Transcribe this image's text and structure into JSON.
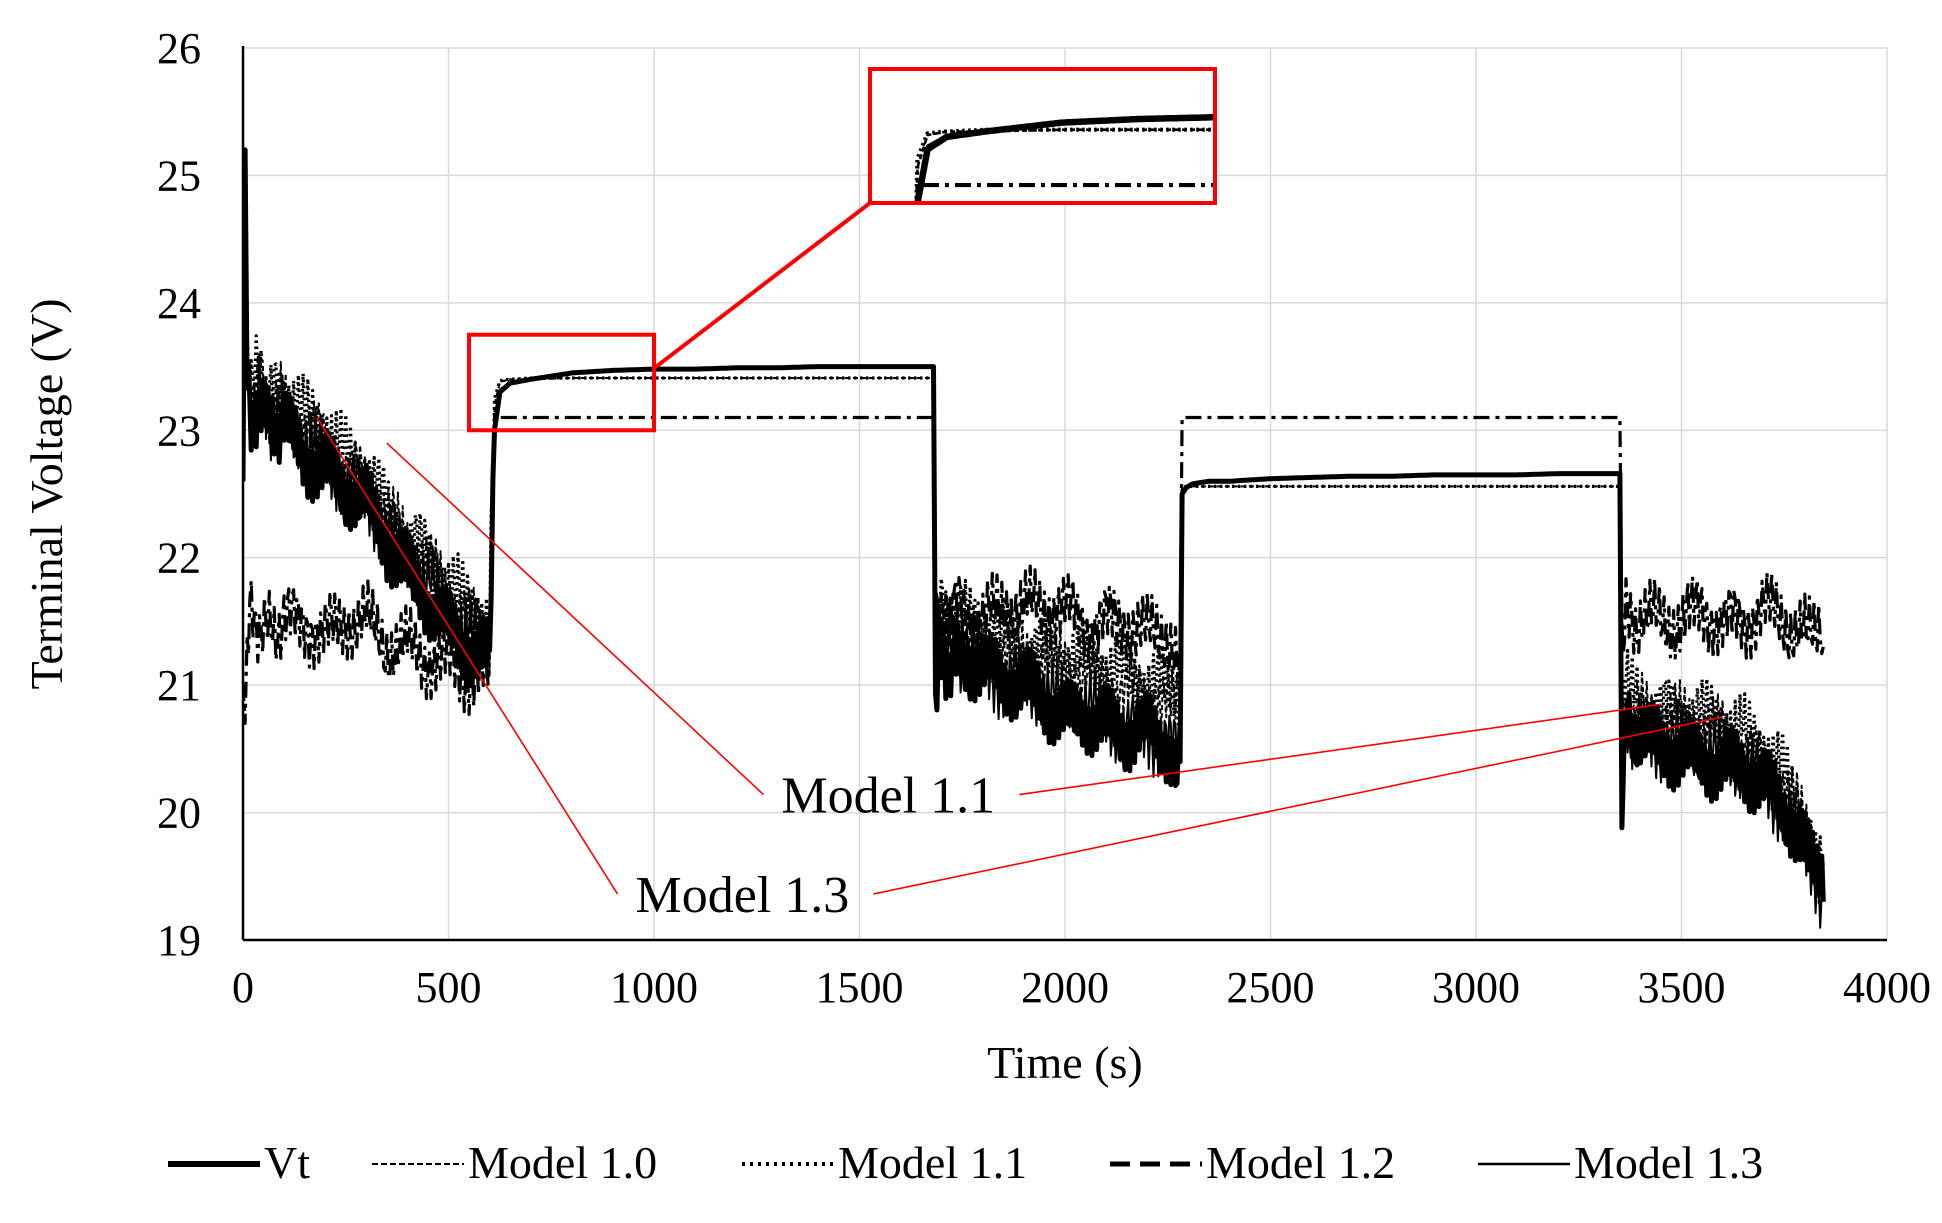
{
  "chart_data": {
    "type": "line",
    "title": "",
    "xlabel": "Time (s)",
    "ylabel": "Terminal Voltage (V)",
    "xlim": [
      0,
      4000
    ],
    "ylim": [
      19,
      26
    ],
    "x_ticks": [
      0,
      500,
      1000,
      1500,
      2000,
      2500,
      3000,
      3500,
      4000
    ],
    "x_tick_labels": [
      "0",
      "500",
      "1000",
      "1500",
      "2000",
      "2500",
      "3000",
      "3500",
      "4000"
    ],
    "y_ticks": [
      19,
      20,
      21,
      22,
      23,
      24,
      25,
      26
    ],
    "y_tick_labels": [
      "19",
      "20",
      "21",
      "22",
      "23",
      "24",
      "25",
      "26"
    ],
    "grid": true,
    "legend_position": "bottom",
    "series": [
      {
        "name": "Vt",
        "line_style": "thick-solid",
        "x": [
          0,
          5,
          10,
          20,
          40,
          60,
          100,
          150,
          200,
          250,
          300,
          350,
          400,
          450,
          500,
          550,
          600,
          612,
          625,
          650,
          700,
          800,
          900,
          1000,
          1100,
          1200,
          1300,
          1400,
          1500,
          1600,
          1680,
          1685,
          1695,
          1710,
          1750,
          1800,
          1850,
          1900,
          1950,
          2000,
          2050,
          2100,
          2150,
          2200,
          2250,
          2280,
          2285,
          2295,
          2310,
          2350,
          2400,
          2500,
          2600,
          2700,
          2800,
          2900,
          3000,
          3100,
          3200,
          3300,
          3350,
          3355,
          3365,
          3380,
          3400,
          3450,
          3500,
          3550,
          3600,
          3650,
          3700,
          3750,
          3800,
          3830,
          3845
        ],
        "y": [
          22.6,
          25.2,
          23.6,
          23.0,
          23.3,
          23.0,
          23.1,
          22.8,
          22.7,
          22.5,
          22.4,
          22.1,
          21.9,
          21.7,
          21.5,
          21.3,
          21.2,
          23.0,
          23.3,
          23.37,
          23.4,
          23.45,
          23.47,
          23.48,
          23.48,
          23.49,
          23.49,
          23.5,
          23.5,
          23.5,
          23.5,
          21.0,
          21.4,
          21.2,
          21.2,
          21.1,
          21.0,
          21.0,
          20.9,
          20.8,
          20.8,
          20.7,
          20.6,
          20.6,
          20.5,
          20.4,
          22.5,
          22.55,
          22.58,
          22.6,
          22.6,
          22.62,
          22.63,
          22.64,
          22.64,
          22.65,
          22.65,
          22.65,
          22.66,
          22.66,
          22.66,
          20.2,
          20.8,
          20.6,
          20.6,
          20.5,
          20.5,
          20.45,
          20.4,
          20.35,
          20.2,
          20.0,
          19.7,
          19.4,
          19.3
        ]
      },
      {
        "name": "Model 1.0",
        "line_style": "thin-dashed",
        "x": [
          0,
          5,
          10,
          20,
          40,
          60,
          100,
          150,
          200,
          250,
          300,
          350,
          400,
          450,
          500,
          550,
          600,
          612,
          625,
          650,
          700,
          800,
          900,
          1000,
          1100,
          1200,
          1300,
          1400,
          1500,
          1600,
          1680,
          1685,
          1695,
          1710,
          1750,
          1800,
          1850,
          1900,
          1950,
          2000,
          2050,
          2100,
          2150,
          2200,
          2250,
          2280,
          2285,
          2295,
          2310,
          2350,
          2400,
          2500,
          2600,
          2700,
          2800,
          2900,
          3000,
          3100,
          3200,
          3300,
          3350,
          3355,
          3365,
          3380,
          3400,
          3450,
          3500,
          3550,
          3600,
          3650,
          3700,
          3750,
          3800,
          3830,
          3845
        ],
        "y": [
          22.8,
          24.0,
          23.4,
          23.2,
          23.4,
          23.2,
          23.2,
          23.0,
          22.9,
          22.7,
          22.6,
          22.3,
          22.1,
          21.9,
          21.7,
          21.5,
          21.4,
          23.2,
          23.38,
          23.4,
          23.4,
          23.41,
          23.41,
          23.41,
          23.41,
          23.41,
          23.41,
          23.41,
          23.41,
          23.41,
          23.41,
          21.3,
          21.5,
          21.4,
          21.4,
          21.3,
          21.3,
          21.2,
          21.2,
          21.1,
          21.1,
          21.0,
          21.0,
          20.9,
          20.9,
          20.8,
          22.55,
          22.56,
          22.56,
          22.56,
          22.56,
          22.56,
          22.56,
          22.56,
          22.56,
          22.56,
          22.56,
          22.56,
          22.56,
          22.56,
          22.56,
          20.6,
          20.9,
          20.8,
          20.8,
          20.7,
          20.7,
          20.65,
          20.6,
          20.5,
          20.4,
          20.2,
          19.9,
          19.6,
          19.5
        ]
      },
      {
        "name": "Model 1.1",
        "line_style": "dotted",
        "x": [
          0,
          5,
          10,
          20,
          40,
          60,
          100,
          150,
          200,
          250,
          300,
          350,
          400,
          450,
          500,
          550,
          600,
          612,
          625,
          650,
          700,
          800,
          900,
          1000,
          1100,
          1200,
          1300,
          1400,
          1500,
          1600,
          1680,
          1685,
          1695,
          1710,
          1750,
          1800,
          1850,
          1900,
          1950,
          2000,
          2050,
          2100,
          2150,
          2200,
          2250,
          2280,
          2285,
          2295,
          2310,
          2350,
          2400,
          2500,
          2600,
          2700,
          2800,
          2900,
          3000,
          3100,
          3200,
          3300,
          3350,
          3355,
          3365,
          3380,
          3400,
          3450,
          3500,
          3550,
          3600,
          3650,
          3700,
          3750,
          3800,
          3830,
          3845
        ],
        "y": [
          22.9,
          24.1,
          23.5,
          23.3,
          23.5,
          23.3,
          23.3,
          23.1,
          23.0,
          22.8,
          22.7,
          22.4,
          22.2,
          22.0,
          21.8,
          21.6,
          21.5,
          23.25,
          23.39,
          23.4,
          23.41,
          23.41,
          23.41,
          23.41,
          23.41,
          23.41,
          23.41,
          23.41,
          23.41,
          23.41,
          23.41,
          21.4,
          21.6,
          21.5,
          21.5,
          21.4,
          21.4,
          21.3,
          21.3,
          21.2,
          21.2,
          21.1,
          21.1,
          21.0,
          21.0,
          20.9,
          22.55,
          22.56,
          22.56,
          22.56,
          22.56,
          22.56,
          22.56,
          22.56,
          22.56,
          22.56,
          22.56,
          22.56,
          22.56,
          22.56,
          22.56,
          20.7,
          21.0,
          20.9,
          20.9,
          20.8,
          20.8,
          20.75,
          20.7,
          20.6,
          20.5,
          20.3,
          20.0,
          19.7,
          19.6
        ]
      },
      {
        "name": "Model 1.2",
        "line_style": "dash-dot",
        "x": [
          0,
          5,
          10,
          20,
          40,
          60,
          100,
          150,
          200,
          250,
          300,
          350,
          400,
          450,
          500,
          550,
          600,
          612,
          625,
          650,
          700,
          800,
          900,
          1000,
          1100,
          1200,
          1300,
          1400,
          1500,
          1600,
          1680,
          1685,
          1695,
          1710,
          1750,
          1800,
          1850,
          1900,
          1950,
          2000,
          2050,
          2100,
          2150,
          2200,
          2250,
          2280,
          2285,
          2295,
          2310,
          2350,
          2400,
          2500,
          2600,
          2700,
          2800,
          2900,
          3000,
          3100,
          3200,
          3300,
          3350,
          3355,
          3365,
          3380,
          3400,
          3450,
          3500,
          3550,
          3600,
          3650,
          3700,
          3750,
          3800,
          3830,
          3845
        ],
        "y": [
          21.0,
          20.7,
          21.5,
          21.6,
          21.5,
          21.4,
          21.5,
          21.5,
          21.4,
          21.5,
          21.5,
          21.3,
          21.3,
          21.2,
          21.2,
          21.1,
          21.1,
          23.1,
          23.1,
          23.1,
          23.1,
          23.1,
          23.1,
          23.1,
          23.1,
          23.1,
          23.1,
          23.1,
          23.1,
          23.1,
          23.1,
          21.7,
          21.6,
          21.6,
          21.6,
          21.5,
          21.6,
          21.6,
          21.6,
          21.6,
          21.5,
          21.5,
          21.5,
          21.4,
          21.4,
          21.3,
          23.1,
          23.1,
          23.1,
          23.1,
          23.1,
          23.1,
          23.1,
          23.1,
          23.1,
          23.1,
          23.1,
          23.1,
          23.1,
          23.1,
          23.1,
          21.4,
          21.6,
          21.5,
          21.5,
          21.5,
          21.5,
          21.6,
          21.5,
          21.5,
          21.6,
          21.5,
          21.4,
          21.3,
          21.3
        ]
      },
      {
        "name": "Model 1.3",
        "line_style": "thin-solid",
        "x": [
          0,
          5,
          10,
          20,
          40,
          60,
          100,
          150,
          200,
          250,
          300,
          350,
          400,
          450,
          500,
          550,
          600,
          612,
          625,
          650,
          700,
          800,
          900,
          1000,
          1100,
          1200,
          1300,
          1400,
          1500,
          1600,
          1680,
          1685,
          1695,
          1710,
          1750,
          1800,
          1850,
          1900,
          1950,
          2000,
          2050,
          2100,
          2150,
          2200,
          2250,
          2280,
          2285,
          2295,
          2310,
          2350,
          2400,
          2500,
          2600,
          2700,
          2800,
          2900,
          3000,
          3100,
          3200,
          3300,
          3350,
          3355,
          3365,
          3380,
          3400,
          3450,
          3500,
          3550,
          3600,
          3650,
          3700,
          3750,
          3800,
          3830,
          3845
        ],
        "y": [
          22.7,
          25.0,
          23.6,
          23.1,
          23.3,
          23.1,
          23.1,
          22.9,
          22.8,
          22.6,
          22.5,
          22.2,
          22.0,
          21.8,
          21.6,
          21.4,
          21.3,
          23.05,
          23.32,
          23.38,
          23.41,
          23.45,
          23.47,
          23.48,
          23.48,
          23.49,
          23.49,
          23.5,
          23.5,
          23.5,
          23.5,
          21.1,
          21.45,
          21.25,
          21.25,
          21.15,
          21.05,
          21.05,
          20.95,
          20.85,
          20.85,
          20.75,
          20.65,
          20.65,
          20.55,
          20.45,
          22.5,
          22.55,
          22.58,
          22.6,
          22.6,
          22.62,
          22.63,
          22.64,
          22.64,
          22.65,
          22.65,
          22.65,
          22.66,
          22.66,
          22.66,
          20.3,
          20.85,
          20.65,
          20.65,
          20.55,
          20.55,
          20.5,
          20.45,
          20.4,
          20.25,
          20.05,
          19.75,
          19.45,
          19.35
        ]
      }
    ],
    "annotations": [
      {
        "label": "Model 1.1",
        "label_at": [
          1310,
          20.0
        ],
        "pointers": [
          [
            350,
            22.9
          ],
          [
            3450,
            20.85
          ]
        ]
      },
      {
        "label": "Model 1.3",
        "label_at": [
          955,
          19.22
        ],
        "pointers": [
          [
            180,
            23.1
          ],
          [
            3600,
            20.75
          ]
        ]
      }
    ],
    "zoom_box": {
      "source_x": [
        550,
        1000
      ],
      "source_y": [
        23.0,
        23.75
      ]
    }
  }
}
